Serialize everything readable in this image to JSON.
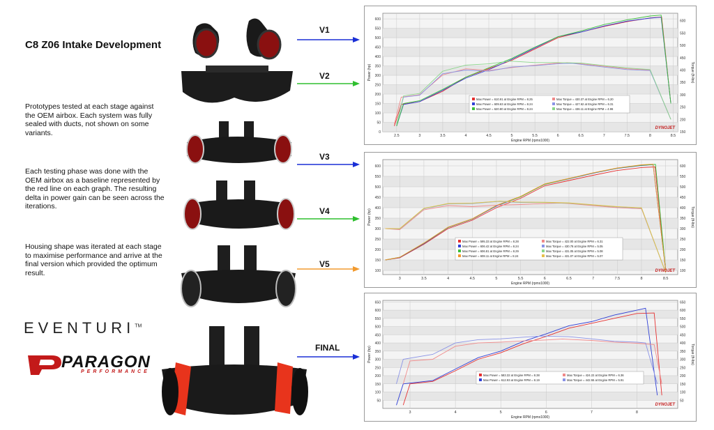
{
  "title": "C8 Z06 Intake Development",
  "paragraphs": [
    "Prototypes tested at each stage against the OEM airbox. Each system was fully sealed with ducts, not shown on some variants.",
    "Each testing phase was done with the OEM airbox as a baseline represented by the red line on each graph. The resulting delta in power gain can be seen across the iterations.",
    "Housing shape was iterated at each stage to maximise performance and arrive at the final version which provided the optimum result."
  ],
  "versions": [
    {
      "label": "V1",
      "color": "#1a2fd6"
    },
    {
      "label": "V2",
      "color": "#2fbf2f"
    },
    {
      "label": "V3",
      "color": "#1a2fd6"
    },
    {
      "label": "V4",
      "color": "#2fbf2f"
    },
    {
      "label": "V5",
      "color": "#f29a2e"
    },
    {
      "label": "FINAL",
      "color": "#1a2fd6"
    }
  ],
  "brands": {
    "eventuri": "EVENTURI",
    "eventuri_tm": "TM",
    "paragon": "PARAGON",
    "paragon_sub": "PERFORMANCE"
  },
  "chart_data": [
    {
      "type": "line",
      "xlabel": "Engine RPM (rpmx1000)",
      "ylabel": "Power (hp)",
      "y2label": "Torque (ft-lbs)",
      "xlim": [
        2.2,
        8.6
      ],
      "ylim": [
        0,
        630
      ],
      "y2lim": [
        150,
        630
      ],
      "x_ticks": [
        2.5,
        3.0,
        3.5,
        4.0,
        4.5,
        5.0,
        5.5,
        6.0,
        6.5,
        7.0,
        7.5,
        8.0,
        8.5
      ],
      "y_ticks": [
        0,
        50,
        100,
        150,
        200,
        250,
        300,
        350,
        400,
        450,
        500,
        550,
        600
      ],
      "y2_ticks": [
        150,
        200,
        250,
        300,
        350,
        400,
        450,
        500,
        550,
        600
      ],
      "watermark": "DYNOJET",
      "legend": [
        {
          "text": "Max Power = 610.91 at Engine RPM = 8.25",
          "color": "#e53030"
        },
        {
          "text": "Max Torque = 430.37 at Engine RPM = 6.20",
          "color": "#f08a8a"
        },
        {
          "text": "Max Power = 609.63 at Engine RPM = 8.24",
          "color": "#2f3fd6"
        },
        {
          "text": "Max Torque = 427.62 at Engine RPM = 6.31",
          "color": "#8a93e6"
        },
        {
          "text": "Max Power = 620.80 at Engine RPM = 8.24",
          "color": "#3cbf3c"
        },
        {
          "text": "Max Torque = 436.11 at Engine RPM = 4.96",
          "color": "#8ad68a"
        }
      ],
      "series": [
        {
          "name": "Max Power = 610.91 at Engine RPM = 8.25",
          "color": "#e53030",
          "axis": "left",
          "x": [
            2.45,
            2.6,
            3.0,
            3.5,
            4.0,
            4.5,
            5.0,
            5.5,
            6.0,
            6.5,
            7.0,
            7.5,
            8.0,
            8.25,
            8.45
          ],
          "y": [
            30,
            145,
            160,
            215,
            290,
            335,
            380,
            440,
            500,
            530,
            560,
            585,
            605,
            610,
            150
          ]
        },
        {
          "name": "Max Power = 609.63 at Engine RPM = 8.24",
          "color": "#2f3fd6",
          "axis": "left",
          "x": [
            2.5,
            2.65,
            3.0,
            3.5,
            4.0,
            4.5,
            5.0,
            5.5,
            6.0,
            6.5,
            7.0,
            7.5,
            8.0,
            8.24,
            8.45
          ],
          "y": [
            30,
            145,
            160,
            220,
            285,
            330,
            385,
            445,
            505,
            530,
            562,
            588,
            604,
            609,
            150
          ]
        },
        {
          "name": "Max Power = 620.80 at Engine RPM = 8.24",
          "color": "#3cbf3c",
          "axis": "left",
          "x": [
            2.5,
            2.65,
            3.0,
            3.5,
            4.0,
            4.5,
            5.0,
            5.5,
            6.0,
            6.5,
            7.0,
            7.5,
            8.0,
            8.24,
            8.45
          ],
          "y": [
            30,
            150,
            165,
            225,
            290,
            340,
            390,
            450,
            505,
            535,
            570,
            595,
            615,
            620,
            150
          ]
        },
        {
          "name": "Max Torque = 430.37 at Engine RPM = 6.20",
          "color": "#f08a8a",
          "axis": "right",
          "x": [
            2.45,
            2.6,
            3.0,
            3.5,
            4.0,
            4.5,
            5.0,
            5.5,
            6.0,
            6.2,
            6.5,
            7.0,
            7.5,
            8.0,
            8.45
          ],
          "y": [
            180,
            290,
            300,
            380,
            405,
            398,
            410,
            420,
            428,
            430,
            425,
            415,
            405,
            400,
            200
          ]
        },
        {
          "name": "Max Torque = 427.62 at Engine RPM = 6.31",
          "color": "#8a93e6",
          "axis": "right",
          "x": [
            2.5,
            2.65,
            3.0,
            3.5,
            4.0,
            4.5,
            5.0,
            5.5,
            6.0,
            6.31,
            6.5,
            7.0,
            7.5,
            8.0,
            8.45
          ],
          "y": [
            180,
            290,
            298,
            385,
            400,
            395,
            412,
            418,
            425,
            427,
            423,
            412,
            402,
            398,
            200
          ]
        },
        {
          "name": "Max Torque = 436.11 at Engine RPM = 4.96",
          "color": "#8ad68a",
          "axis": "right",
          "x": [
            2.5,
            2.65,
            3.0,
            3.5,
            4.0,
            4.5,
            4.96,
            5.5,
            6.0,
            6.5,
            7.0,
            7.5,
            8.0,
            8.45
          ],
          "y": [
            180,
            295,
            305,
            395,
            420,
            425,
            436,
            430,
            430,
            428,
            418,
            408,
            402,
            200
          ]
        }
      ]
    },
    {
      "type": "line",
      "xlabel": "Engine RPM (rpmx1000)",
      "ylabel": "Power (hp)",
      "y2label": "Torque (ft-lbs)",
      "xlim": [
        2.65,
        8.75
      ],
      "ylim": [
        80,
        630
      ],
      "y2lim": [
        80,
        630
      ],
      "x_ticks": [
        3.0,
        3.5,
        4.0,
        4.5,
        5.0,
        5.5,
        6.0,
        6.5,
        7.0,
        7.5,
        8.0,
        8.5
      ],
      "y_ticks": [
        100,
        150,
        200,
        250,
        300,
        350,
        400,
        450,
        500,
        550,
        600
      ],
      "y2_ticks": [
        100,
        150,
        200,
        250,
        300,
        350,
        400,
        450,
        500,
        550,
        600
      ],
      "watermark": "DYNOJET",
      "legend": [
        {
          "text": "Max Power = 595.33 at Engine RPM = 8.28",
          "color": "#e53030"
        },
        {
          "text": "Max Torque = 422.00 at Engine RPM = 6.31",
          "color": "#f08a8a"
        },
        {
          "text": "Max Power = 606.42 at Engine RPM = 8.24",
          "color": "#2f3fd6"
        },
        {
          "text": "Max Torque = 430.78 at Engine RPM = 5.05",
          "color": "#8a93e6"
        },
        {
          "text": "Max Power = 606.81 at Engine RPM = 8.29",
          "color": "#3cbf3c"
        },
        {
          "text": "Max Torque = 431.05 at Engine RPM = 5.08",
          "color": "#8ad68a"
        },
        {
          "text": "Max Power = 608.11 at Engine RPM = 8.24",
          "color": "#f29a2e"
        },
        {
          "text": "Max Torque = 431.07 at Engine RPM = 5.07",
          "color": "#e6c04a"
        }
      ],
      "series": [
        {
          "name": "Max Power = 595.33 at Engine RPM = 8.28",
          "color": "#e53030",
          "axis": "left",
          "x": [
            2.7,
            3.0,
            3.5,
            4.0,
            4.5,
            5.0,
            5.5,
            6.0,
            6.5,
            7.0,
            7.5,
            8.0,
            8.28,
            8.5
          ],
          "y": [
            150,
            160,
            225,
            300,
            340,
            400,
            445,
            505,
            530,
            555,
            578,
            592,
            595,
            100
          ]
        },
        {
          "name": "Max Power = 606.42 at Engine RPM = 8.24",
          "color": "#2f3fd6",
          "axis": "left",
          "x": [
            2.7,
            3.0,
            3.5,
            4.0,
            4.5,
            5.0,
            5.5,
            6.0,
            6.5,
            7.0,
            7.5,
            8.0,
            8.24,
            8.5
          ],
          "y": [
            150,
            162,
            228,
            305,
            345,
            408,
            452,
            512,
            538,
            565,
            588,
            602,
            606,
            100
          ]
        },
        {
          "name": "Max Power = 606.81 at Engine RPM = 8.29",
          "color": "#3cbf3c",
          "axis": "left",
          "x": [
            2.7,
            3.0,
            3.5,
            4.0,
            4.5,
            5.0,
            5.5,
            6.0,
            6.5,
            7.0,
            7.5,
            8.0,
            8.29,
            8.5
          ],
          "y": [
            150,
            163,
            230,
            306,
            346,
            410,
            452,
            512,
            539,
            566,
            589,
            603,
            607,
            100
          ]
        },
        {
          "name": "Max Power = 608.11 at Engine RPM = 8.24",
          "color": "#f29a2e",
          "axis": "left",
          "x": [
            2.7,
            3.0,
            3.5,
            4.0,
            4.5,
            5.0,
            5.5,
            6.0,
            6.5,
            7.0,
            7.5,
            8.0,
            8.24,
            8.5
          ],
          "y": [
            150,
            163,
            231,
            307,
            347,
            411,
            454,
            514,
            540,
            567,
            590,
            605,
            608,
            100
          ]
        },
        {
          "name": "Max Torque = 422.00 at Engine RPM = 6.31",
          "color": "#f08a8a",
          "axis": "right",
          "x": [
            2.7,
            3.0,
            3.5,
            4.0,
            4.5,
            5.0,
            5.5,
            6.0,
            6.31,
            6.5,
            7.0,
            7.5,
            8.0,
            8.5
          ],
          "y": [
            300,
            295,
            390,
            410,
            405,
            412,
            415,
            420,
            422,
            420,
            410,
            400,
            395,
            90
          ]
        },
        {
          "name": "Max Torque = 430.78 at Engine RPM = 5.05",
          "color": "#8a93e6",
          "axis": "right",
          "x": [
            2.7,
            3.0,
            3.5,
            4.0,
            4.5,
            5.05,
            5.5,
            6.0,
            6.5,
            7.0,
            7.5,
            8.0,
            8.5
          ],
          "y": [
            300,
            298,
            395,
            418,
            420,
            430,
            425,
            425,
            422,
            413,
            403,
            398,
            90
          ]
        },
        {
          "name": "Max Torque = 431.05 at Engine RPM = 5.08",
          "color": "#8ad68a",
          "axis": "right",
          "x": [
            2.7,
            3.0,
            3.5,
            4.0,
            4.5,
            5.08,
            5.5,
            6.0,
            6.5,
            7.0,
            7.5,
            8.0,
            8.5
          ],
          "y": [
            300,
            299,
            396,
            419,
            421,
            431,
            426,
            425,
            422,
            413,
            404,
            399,
            90
          ]
        },
        {
          "name": "Max Torque = 431.07 at Engine RPM = 5.07",
          "color": "#e6c04a",
          "axis": "right",
          "x": [
            2.7,
            3.0,
            3.5,
            4.0,
            4.5,
            5.07,
            5.5,
            6.0,
            6.5,
            7.0,
            7.5,
            8.0,
            8.5
          ],
          "y": [
            300,
            300,
            397,
            420,
            422,
            431,
            427,
            426,
            423,
            414,
            405,
            400,
            90
          ]
        }
      ]
    },
    {
      "type": "line",
      "xlabel": "Engine RPM (rpmx1000)",
      "ylabel": "Power (hp)",
      "y2label": "Torque (ft-lbs)",
      "xlim": [
        2.4,
        8.9
      ],
      "ylim": [
        0,
        660
      ],
      "y2lim": [
        0,
        660
      ],
      "x_ticks": [
        3,
        4,
        5,
        6,
        7,
        8
      ],
      "y_ticks": [
        50,
        100,
        150,
        200,
        250,
        300,
        350,
        400,
        450,
        500,
        550,
        600,
        650
      ],
      "y2_ticks": [
        50,
        100,
        150,
        200,
        250,
        300,
        350,
        400,
        450,
        500,
        550,
        600,
        650
      ],
      "watermark": "DYNOJET",
      "legend": [
        {
          "text": "Max Power = 583.32 at Engine RPM = 8.38",
          "color": "#e53030"
        },
        {
          "text": "Max Torque = 424.22 at Engine RPM = 6.36",
          "color": "#f08a8a"
        },
        {
          "text": "Max Power = 612.93 at Engine RPM = 8.19",
          "color": "#2f3fd6"
        },
        {
          "text": "Max Torque = 442.55 at Engine RPM = 5.91",
          "color": "#8a93e6"
        }
      ],
      "series": [
        {
          "name": "Max Power = 583.32 at Engine RPM = 8.38",
          "color": "#e53030",
          "axis": "left",
          "x": [
            2.85,
            3.0,
            3.5,
            4.0,
            4.5,
            5.0,
            5.5,
            6.0,
            6.5,
            7.0,
            7.5,
            8.0,
            8.38,
            8.55
          ],
          "y": [
            20,
            150,
            165,
            230,
            300,
            340,
            395,
            440,
            490,
            520,
            550,
            580,
            583,
            80
          ]
        },
        {
          "name": "Max Power = 612.93 at Engine RPM = 8.19",
          "color": "#2f3fd6",
          "axis": "left",
          "x": [
            2.7,
            2.85,
            3.5,
            4.0,
            4.5,
            5.0,
            5.5,
            6.0,
            6.5,
            7.0,
            7.5,
            8.0,
            8.19,
            8.45
          ],
          "y": [
            20,
            150,
            170,
            240,
            310,
            350,
            410,
            455,
            505,
            530,
            570,
            600,
            612,
            80
          ]
        },
        {
          "name": "Max Torque = 424.22 at Engine RPM = 6.36",
          "color": "#f08a8a",
          "axis": "right",
          "x": [
            2.85,
            3.0,
            3.5,
            4.0,
            4.5,
            5.0,
            5.5,
            6.0,
            6.36,
            6.5,
            7.0,
            7.5,
            8.0,
            8.38,
            8.55
          ],
          "y": [
            150,
            290,
            300,
            380,
            400,
            405,
            412,
            418,
            424,
            422,
            415,
            405,
            398,
            390,
            150
          ]
        },
        {
          "name": "Max Torque = 442.55 at Engine RPM = 5.91",
          "color": "#8a93e6",
          "axis": "right",
          "x": [
            2.7,
            2.85,
            3.5,
            4.0,
            4.5,
            5.0,
            5.5,
            5.91,
            6.5,
            7.0,
            7.5,
            8.0,
            8.19,
            8.45
          ],
          "y": [
            150,
            300,
            330,
            400,
            420,
            425,
            435,
            442,
            438,
            425,
            410,
            405,
            400,
            150
          ]
        }
      ]
    }
  ]
}
